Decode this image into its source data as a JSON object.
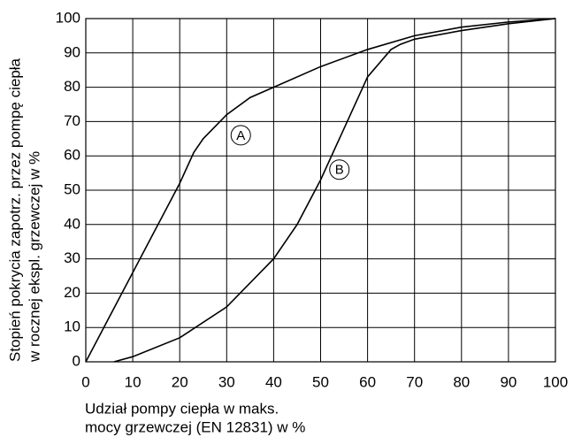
{
  "chart_data": {
    "type": "line",
    "xlabel": [
      "Udział pompy ciepła w maks.",
      "mocy grzewczej (EN 12831) w %"
    ],
    "ylabel": [
      "Stopień pokrycia zapotrz. przez pompę ciepła",
      "w rocznej ekspl. grzewczej w %"
    ],
    "xlim": [
      0,
      100
    ],
    "ylim": [
      0,
      100
    ],
    "xticks": [
      0,
      10,
      20,
      30,
      40,
      50,
      60,
      70,
      80,
      90,
      100
    ],
    "yticks": [
      0,
      10,
      20,
      30,
      40,
      50,
      60,
      70,
      80,
      90,
      100
    ],
    "grid": true,
    "series": [
      {
        "name": "A",
        "color": "#000000",
        "x": [
          0,
          5,
          10,
          15,
          20,
          23,
          25,
          30,
          35,
          40,
          50,
          60,
          70,
          80,
          90,
          100
        ],
        "values": [
          0,
          13,
          26,
          39,
          52,
          61,
          65,
          72,
          77,
          80,
          86,
          91,
          95,
          97.5,
          99,
          100
        ]
      },
      {
        "name": "B",
        "color": "#000000",
        "x": [
          6,
          10,
          20,
          30,
          40,
          45,
          50,
          55,
          60,
          65,
          67,
          70,
          80,
          90,
          100
        ],
        "values": [
          0,
          1.5,
          7,
          16,
          30,
          40,
          53,
          68,
          83,
          91,
          92.5,
          94,
          96.5,
          98.5,
          100
        ]
      }
    ]
  }
}
